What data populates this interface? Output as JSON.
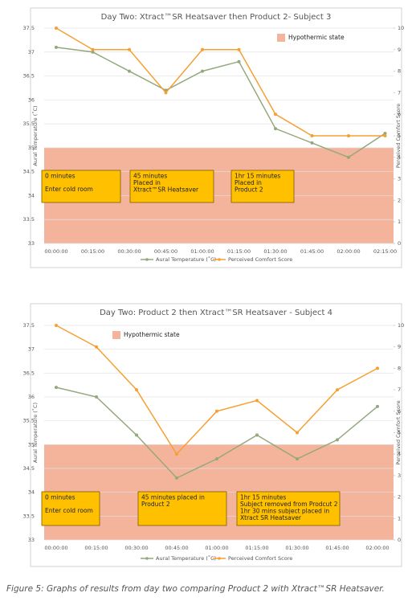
{
  "chart_data": [
    {
      "type": "line",
      "title": "Day Two: Xtract™SR Heatsaver then Product 2- Subject 3",
      "y_label": "Aural Temperature (˚C)",
      "y2_label": "Perceived Comfort Score",
      "categories": [
        "00:00:00",
        "00:15:00",
        "00:30:00",
        "00:45:00",
        "01:00:00",
        "01:15:00",
        "01:30:00",
        "01:45:00",
        "02:00:00",
        "02:15:00"
      ],
      "series": [
        {
          "name": "Aural Temperature (˚C)",
          "color": "#93a97c",
          "values": [
            37.1,
            37.0,
            36.6,
            36.2,
            36.6,
            36.8,
            35.4,
            35.1,
            34.8,
            35.3
          ]
        },
        {
          "name": "Perceived Comfort Score",
          "color": "#f5a033",
          "axis": "y2",
          "values": [
            10,
            9,
            9,
            7,
            9,
            9,
            6,
            5,
            5,
            5
          ]
        }
      ],
      "ylim": [
        33,
        37.5
      ],
      "yticks": [
        33,
        33.5,
        34,
        34.5,
        35,
        35.5,
        36,
        36.5,
        37,
        37.5
      ],
      "y2lim": [
        0,
        10
      ],
      "y2ticks": [
        0,
        1,
        2,
        3,
        4,
        5,
        6,
        7,
        8,
        9,
        10
      ],
      "grid": true,
      "band": {
        "label": "Hypothermic state",
        "from": 33,
        "to": 35,
        "color": "#f4b49c",
        "legend": "top-right"
      },
      "annotations": [
        {
          "lines": [
            "0 minutes",
            "Enter cold room"
          ]
        },
        {
          "lines": [
            "45 minutes",
            "Placed in",
            "Xtract™SR Heatsaver"
          ]
        },
        {
          "lines": [
            "1hr 15 minutes",
            "Placed in",
            "Product 2"
          ]
        }
      ]
    },
    {
      "type": "line",
      "title": "Day Two: Product 2 then Xtract™SR Heatsaver - Subject 4",
      "y_label": "Aural Temperature (˚C)",
      "y2_label": "Perceived Comfort Score",
      "categories": [
        "00:00:00",
        "00:15:00",
        "00:30:00",
        "00:45:00",
        "01:00:00",
        "01:15:00",
        "01:30:00",
        "01:45:00",
        "02:00:00"
      ],
      "series": [
        {
          "name": "Aural Temperature (˚C)",
          "color": "#93a97c",
          "values": [
            36.2,
            36.0,
            35.2,
            34.3,
            34.7,
            35.2,
            34.7,
            35.1,
            35.8
          ]
        },
        {
          "name": "Perceived Comfort Score",
          "color": "#f5a033",
          "axis": "y2",
          "values": [
            10,
            9,
            7,
            4,
            6,
            6.5,
            5,
            7,
            8
          ]
        }
      ],
      "ylim": [
        33,
        37.5
      ],
      "yticks": [
        33,
        33.5,
        34,
        34.5,
        35,
        35.5,
        36,
        36.5,
        37,
        37.5
      ],
      "y2lim": [
        0,
        10
      ],
      "y2ticks": [
        0,
        1,
        2,
        3,
        4,
        5,
        6,
        7,
        8,
        9,
        10
      ],
      "grid": true,
      "band": {
        "label": "Hypothermic state",
        "from": 33,
        "to": 35,
        "color": "#f4b49c",
        "legend": "top-left"
      },
      "annotations": [
        {
          "lines": [
            "0 minutes",
            "Enter cold room"
          ]
        },
        {
          "lines": [
            "45 minutes placed in",
            "Product 2"
          ]
        },
        {
          "lines": [
            "1hr 15 minutes",
            "Subject removed from Prodcut 2",
            "1hr 30 mins subject placed in",
            "Xtract SR Heatsaver"
          ]
        }
      ]
    }
  ],
  "caption": "Figure 5: Graphs of results from day two comparing Product 2 with Xtract™SR Heatsaver."
}
